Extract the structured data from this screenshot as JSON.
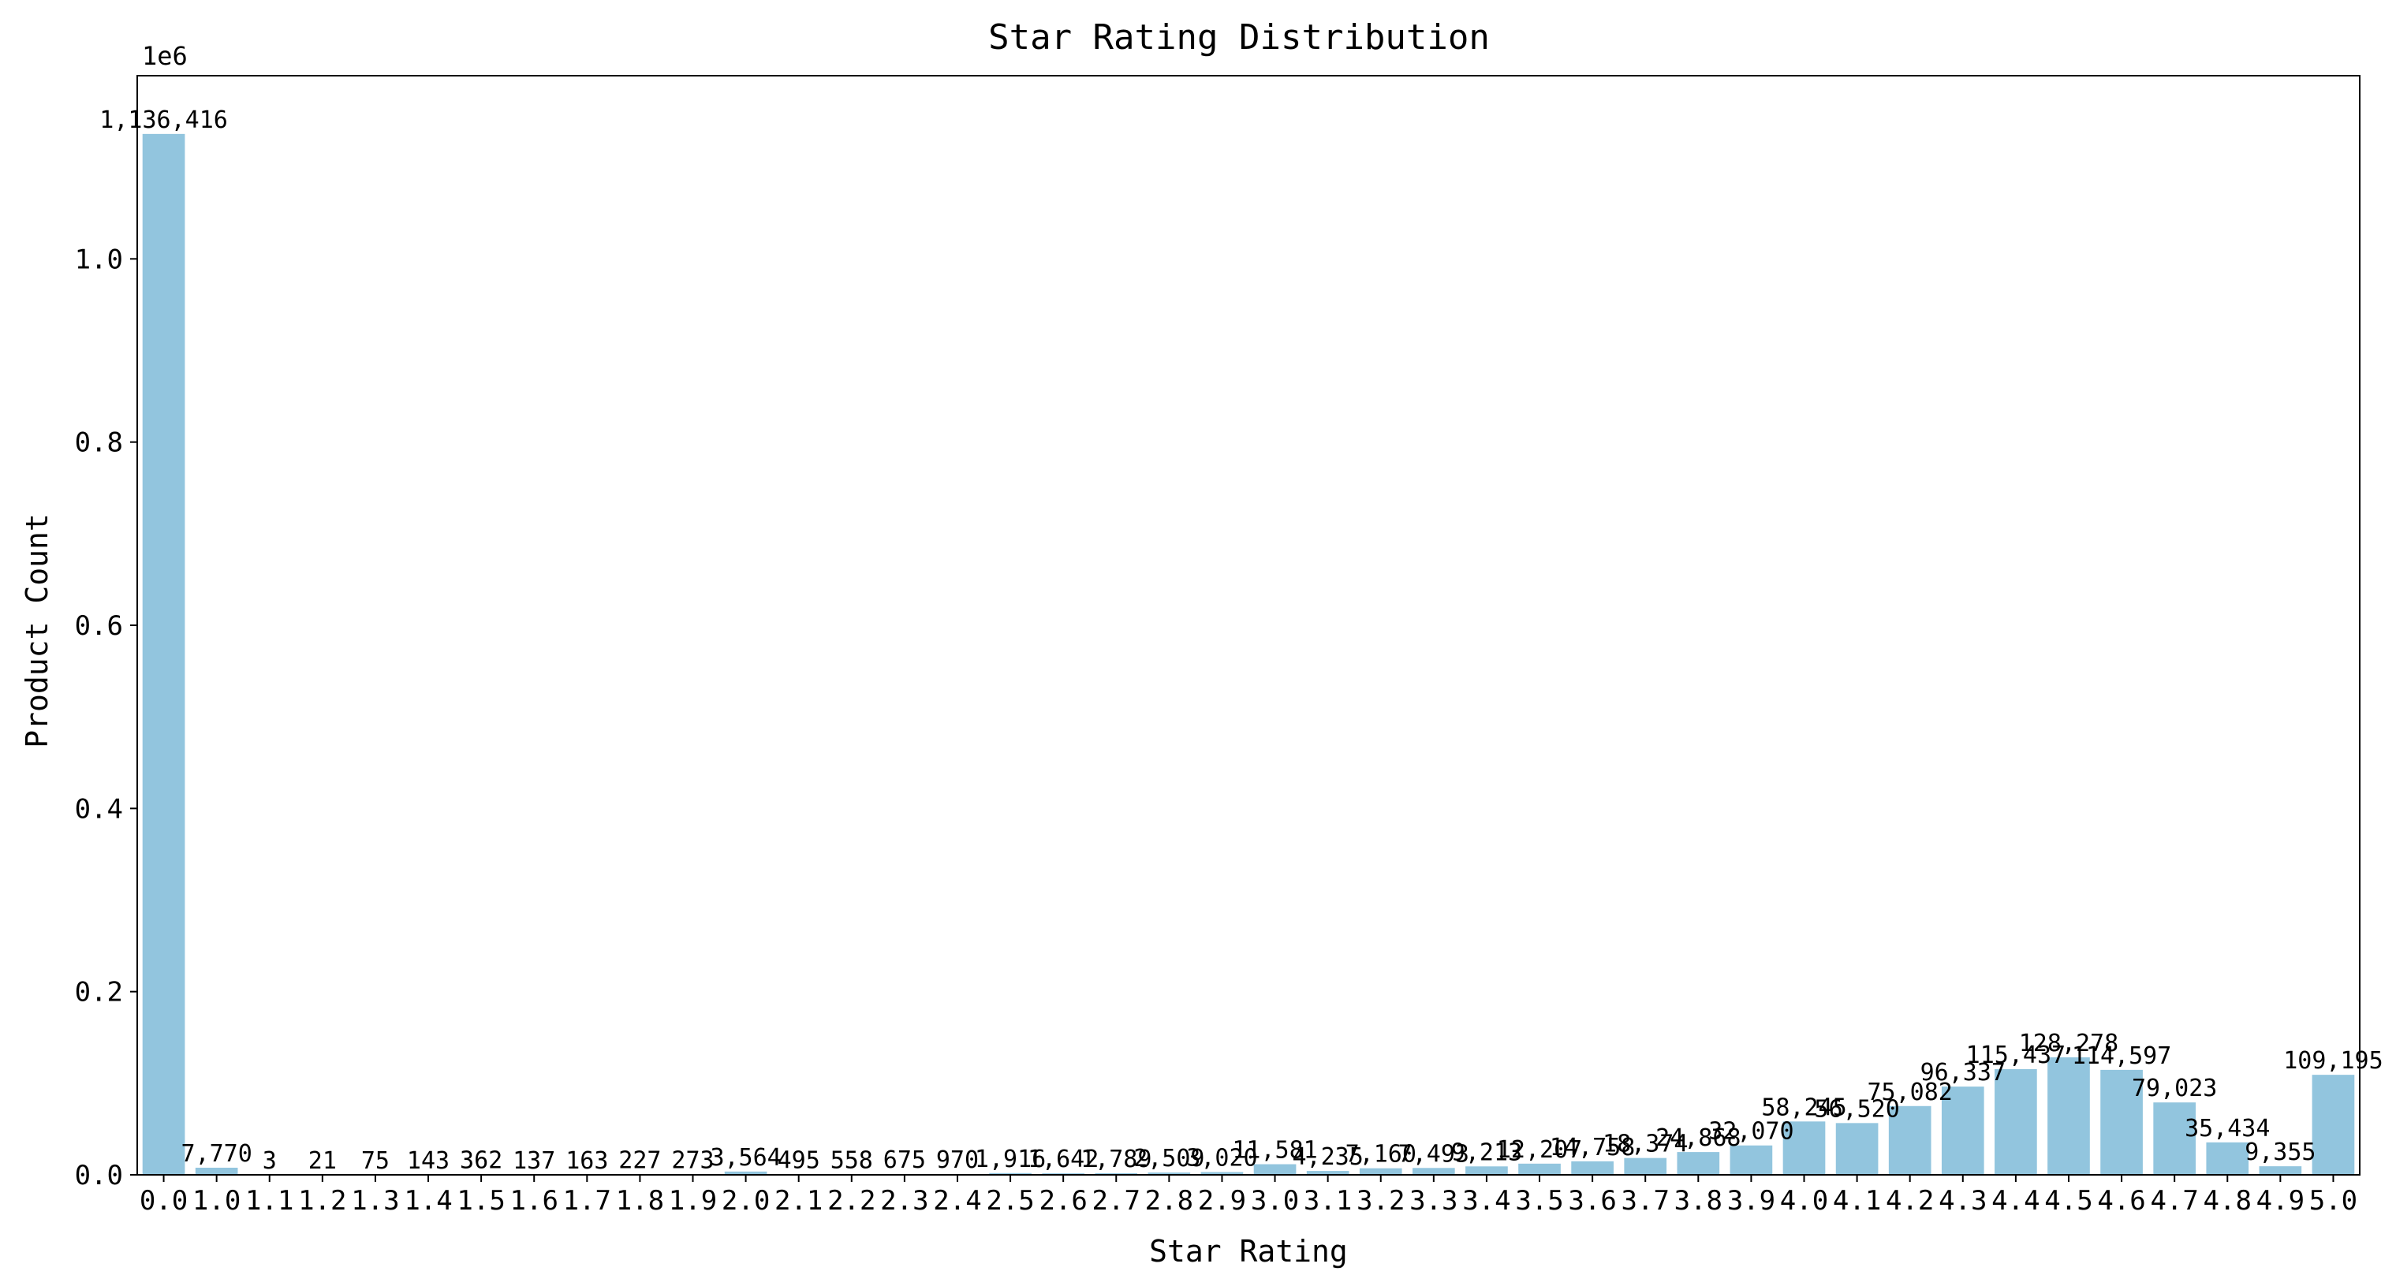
{
  "chart_data": {
    "type": "bar",
    "title": "Star Rating Distribution",
    "xlabel": "Star Rating",
    "ylabel": "Product Count",
    "y_offset_label": "1e6",
    "ylim": [
      0,
      1200000
    ],
    "yticks": [
      0,
      200000,
      400000,
      600000,
      800000,
      1000000
    ],
    "ytick_labels": [
      "0.0",
      "0.2",
      "0.4",
      "0.6",
      "0.8",
      "1.0"
    ],
    "grid": false,
    "bar_color": "#92c5de",
    "categories": [
      "0.0",
      "1.0",
      "1.1",
      "1.2",
      "1.3",
      "1.4",
      "1.5",
      "1.6",
      "1.7",
      "1.8",
      "1.9",
      "2.0",
      "2.1",
      "2.2",
      "2.3",
      "2.4",
      "2.5",
      "2.6",
      "2.7",
      "2.8",
      "2.9",
      "3.0",
      "3.1",
      "3.2",
      "3.3",
      "3.4",
      "3.5",
      "3.6",
      "3.7",
      "3.8",
      "3.9",
      "4.0",
      "4.1",
      "4.2",
      "4.3",
      "4.4",
      "4.5",
      "4.6",
      "4.7",
      "4.8",
      "4.9",
      "5.0"
    ],
    "values": [
      1136416,
      7770,
      3,
      21,
      75,
      143,
      362,
      137,
      163,
      227,
      273,
      3564,
      495,
      558,
      675,
      970,
      1916,
      1642,
      1789,
      2509,
      3020,
      11581,
      4235,
      7160,
      7493,
      9213,
      12207,
      14758,
      18374,
      24868,
      32070,
      58245,
      56520,
      75082,
      96337,
      115437,
      128278,
      114597,
      79023,
      35434,
      9355,
      109195
    ],
    "value_labels": [
      "1,136,416",
      "7,770",
      "3",
      "21",
      "75",
      "143",
      "362",
      "137",
      "163",
      "227",
      "273",
      "3,564",
      "495",
      "558",
      "675",
      "970",
      "1,916",
      "1,642",
      "1,789",
      "2,509",
      "3,020",
      "11,581",
      "4,235",
      "7,160",
      "7,493",
      "9,213",
      "12,207",
      "14,758",
      "18,374",
      "24,868",
      "32,070",
      "58,245",
      "56,520",
      "75,082",
      "96,337",
      "115,437",
      "128,278",
      "114,597",
      "79,023",
      "35,434",
      "9,355",
      "109,195"
    ]
  }
}
